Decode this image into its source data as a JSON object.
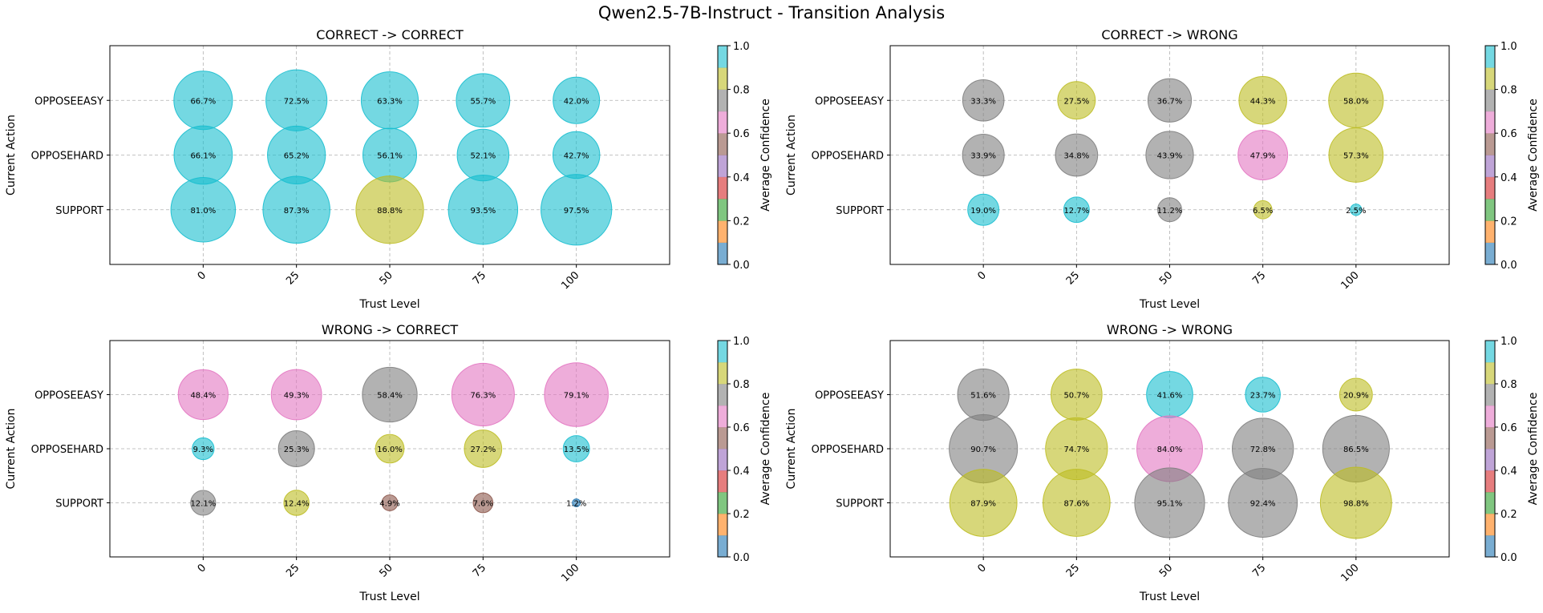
{
  "suptitle": "Qwen2.5-7B-Instruct - Transition Analysis",
  "colormap": [
    "#1f77b4",
    "#ff7f0e",
    "#2ca02c",
    "#d62728",
    "#9467bd",
    "#8c564b",
    "#e377c2",
    "#7f7f7f",
    "#bcbd22",
    "#17becf"
  ],
  "chart_data": [
    {
      "type": "scatter",
      "title": "CORRECT -> CORRECT",
      "xlabel": "Trust Level",
      "ylabel": "Current Action",
      "colorbar_label": "Average Confidence",
      "colorbar_ticks": [
        "0.0",
        "0.2",
        "0.4",
        "0.6",
        "0.8",
        "1.0"
      ],
      "x_ticks": [
        "0",
        "25",
        "50",
        "75",
        "100"
      ],
      "y_categories": [
        "OPPOSEEASY",
        "OPPOSEHARD",
        "SUPPORT"
      ],
      "points": [
        {
          "y": "OPPOSEEASY",
          "x": 0,
          "pct": 66.7,
          "label": "66.7%",
          "confidence": 0.95
        },
        {
          "y": "OPPOSEEASY",
          "x": 25,
          "pct": 72.5,
          "label": "72.5%",
          "confidence": 0.95
        },
        {
          "y": "OPPOSEEASY",
          "x": 50,
          "pct": 63.3,
          "label": "63.3%",
          "confidence": 0.95
        },
        {
          "y": "OPPOSEEASY",
          "x": 75,
          "pct": 55.7,
          "label": "55.7%",
          "confidence": 0.95
        },
        {
          "y": "OPPOSEEASY",
          "x": 100,
          "pct": 42.0,
          "label": "42.0%",
          "confidence": 0.95
        },
        {
          "y": "OPPOSEHARD",
          "x": 0,
          "pct": 66.1,
          "label": "66.1%",
          "confidence": 0.95
        },
        {
          "y": "OPPOSEHARD",
          "x": 25,
          "pct": 65.2,
          "label": "65.2%",
          "confidence": 0.95
        },
        {
          "y": "OPPOSEHARD",
          "x": 50,
          "pct": 56.1,
          "label": "56.1%",
          "confidence": 0.95
        },
        {
          "y": "OPPOSEHARD",
          "x": 75,
          "pct": 52.1,
          "label": "52.1%",
          "confidence": 0.95
        },
        {
          "y": "OPPOSEHARD",
          "x": 100,
          "pct": 42.7,
          "label": "42.7%",
          "confidence": 0.95
        },
        {
          "y": "SUPPORT",
          "x": 0,
          "pct": 81.0,
          "label": "81.0%",
          "confidence": 0.95
        },
        {
          "y": "SUPPORT",
          "x": 25,
          "pct": 87.3,
          "label": "87.3%",
          "confidence": 0.95
        },
        {
          "y": "SUPPORT",
          "x": 50,
          "pct": 88.8,
          "label": "88.8%",
          "confidence": 0.85
        },
        {
          "y": "SUPPORT",
          "x": 75,
          "pct": 93.5,
          "label": "93.5%",
          "confidence": 0.95
        },
        {
          "y": "SUPPORT",
          "x": 100,
          "pct": 97.5,
          "label": "97.5%",
          "confidence": 0.95
        }
      ]
    },
    {
      "type": "scatter",
      "title": "CORRECT -> WRONG",
      "xlabel": "Trust Level",
      "ylabel": "Current Action",
      "colorbar_label": "Average Confidence",
      "colorbar_ticks": [
        "0.0",
        "0.2",
        "0.4",
        "0.6",
        "0.8",
        "1.0"
      ],
      "x_ticks": [
        "0",
        "25",
        "50",
        "75",
        "100"
      ],
      "y_categories": [
        "OPPOSEEASY",
        "OPPOSEHARD",
        "SUPPORT"
      ],
      "points": [
        {
          "y": "OPPOSEEASY",
          "x": 0,
          "pct": 33.3,
          "label": "33.3%",
          "confidence": 0.75
        },
        {
          "y": "OPPOSEEASY",
          "x": 25,
          "pct": 27.5,
          "label": "27.5%",
          "confidence": 0.85
        },
        {
          "y": "OPPOSEEASY",
          "x": 50,
          "pct": 36.7,
          "label": "36.7%",
          "confidence": 0.75
        },
        {
          "y": "OPPOSEEASY",
          "x": 75,
          "pct": 44.3,
          "label": "44.3%",
          "confidence": 0.85
        },
        {
          "y": "OPPOSEEASY",
          "x": 100,
          "pct": 58.0,
          "label": "58.0%",
          "confidence": 0.85
        },
        {
          "y": "OPPOSEHARD",
          "x": 0,
          "pct": 33.9,
          "label": "33.9%",
          "confidence": 0.75
        },
        {
          "y": "OPPOSEHARD",
          "x": 25,
          "pct": 34.8,
          "label": "34.8%",
          "confidence": 0.75
        },
        {
          "y": "OPPOSEHARD",
          "x": 50,
          "pct": 43.9,
          "label": "43.9%",
          "confidence": 0.75
        },
        {
          "y": "OPPOSEHARD",
          "x": 75,
          "pct": 47.9,
          "label": "47.9%",
          "confidence": 0.65
        },
        {
          "y": "OPPOSEHARD",
          "x": 100,
          "pct": 57.3,
          "label": "57.3%",
          "confidence": 0.85
        },
        {
          "y": "SUPPORT",
          "x": 0,
          "pct": 19.0,
          "label": "19.0%",
          "confidence": 0.95
        },
        {
          "y": "SUPPORT",
          "x": 25,
          "pct": 12.7,
          "label": "12.7%",
          "confidence": 0.95
        },
        {
          "y": "SUPPORT",
          "x": 50,
          "pct": 11.2,
          "label": "11.2%",
          "confidence": 0.75
        },
        {
          "y": "SUPPORT",
          "x": 75,
          "pct": 6.5,
          "label": "6.5%",
          "confidence": 0.85
        },
        {
          "y": "SUPPORT",
          "x": 100,
          "pct": 2.5,
          "label": "2.5%",
          "confidence": 0.95
        }
      ]
    },
    {
      "type": "scatter",
      "title": "WRONG -> CORRECT",
      "xlabel": "Trust Level",
      "ylabel": "Current Action",
      "colorbar_label": "Average Confidence",
      "colorbar_ticks": [
        "0.0",
        "0.2",
        "0.4",
        "0.6",
        "0.8",
        "1.0"
      ],
      "x_ticks": [
        "0",
        "25",
        "50",
        "75",
        "100"
      ],
      "y_categories": [
        "OPPOSEEASY",
        "OPPOSEHARD",
        "SUPPORT"
      ],
      "points": [
        {
          "y": "OPPOSEEASY",
          "x": 0,
          "pct": 48.4,
          "label": "48.4%",
          "confidence": 0.65
        },
        {
          "y": "OPPOSEEASY",
          "x": 25,
          "pct": 49.3,
          "label": "49.3%",
          "confidence": 0.65
        },
        {
          "y": "OPPOSEEASY",
          "x": 50,
          "pct": 58.4,
          "label": "58.4%",
          "confidence": 0.75
        },
        {
          "y": "OPPOSEEASY",
          "x": 75,
          "pct": 76.3,
          "label": "76.3%",
          "confidence": 0.65
        },
        {
          "y": "OPPOSEEASY",
          "x": 100,
          "pct": 79.1,
          "label": "79.1%",
          "confidence": 0.65
        },
        {
          "y": "OPPOSEHARD",
          "x": 0,
          "pct": 9.3,
          "label": "9.3%",
          "confidence": 0.95
        },
        {
          "y": "OPPOSEHARD",
          "x": 25,
          "pct": 25.3,
          "label": "25.3%",
          "confidence": 0.75
        },
        {
          "y": "OPPOSEHARD",
          "x": 50,
          "pct": 16.0,
          "label": "16.0%",
          "confidence": 0.85
        },
        {
          "y": "OPPOSEHARD",
          "x": 75,
          "pct": 27.2,
          "label": "27.2%",
          "confidence": 0.85
        },
        {
          "y": "OPPOSEHARD",
          "x": 100,
          "pct": 13.5,
          "label": "13.5%",
          "confidence": 0.95
        },
        {
          "y": "SUPPORT",
          "x": 0,
          "pct": 12.1,
          "label": "12.1%",
          "confidence": 0.75
        },
        {
          "y": "SUPPORT",
          "x": 25,
          "pct": 12.4,
          "label": "12.4%",
          "confidence": 0.85
        },
        {
          "y": "SUPPORT",
          "x": 50,
          "pct": 4.9,
          "label": "4.9%",
          "confidence": 0.55
        },
        {
          "y": "SUPPORT",
          "x": 75,
          "pct": 7.6,
          "label": "7.6%",
          "confidence": 0.55
        },
        {
          "y": "SUPPORT",
          "x": 100,
          "pct": 1.2,
          "label": "1.2%",
          "confidence": 0.05
        }
      ]
    },
    {
      "type": "scatter",
      "title": "WRONG -> WRONG",
      "xlabel": "Trust Level",
      "ylabel": "Current Action",
      "colorbar_label": "Average Confidence",
      "colorbar_ticks": [
        "0.0",
        "0.2",
        "0.4",
        "0.6",
        "0.8",
        "1.0"
      ],
      "x_ticks": [
        "0",
        "25",
        "50",
        "75",
        "100"
      ],
      "y_categories": [
        "OPPOSEEASY",
        "OPPOSEHARD",
        "SUPPORT"
      ],
      "points": [
        {
          "y": "OPPOSEEASY",
          "x": 0,
          "pct": 51.6,
          "label": "51.6%",
          "confidence": 0.75
        },
        {
          "y": "OPPOSEEASY",
          "x": 25,
          "pct": 50.7,
          "label": "50.7%",
          "confidence": 0.85
        },
        {
          "y": "OPPOSEEASY",
          "x": 50,
          "pct": 41.6,
          "label": "41.6%",
          "confidence": 0.95
        },
        {
          "y": "OPPOSEEASY",
          "x": 75,
          "pct": 23.7,
          "label": "23.7%",
          "confidence": 0.95
        },
        {
          "y": "OPPOSEEASY",
          "x": 100,
          "pct": 20.9,
          "label": "20.9%",
          "confidence": 0.85
        },
        {
          "y": "OPPOSEHARD",
          "x": 0,
          "pct": 90.7,
          "label": "90.7%",
          "confidence": 0.75
        },
        {
          "y": "OPPOSEHARD",
          "x": 25,
          "pct": 74.7,
          "label": "74.7%",
          "confidence": 0.85
        },
        {
          "y": "OPPOSEHARD",
          "x": 50,
          "pct": 84.0,
          "label": "84.0%",
          "confidence": 0.65
        },
        {
          "y": "OPPOSEHARD",
          "x": 75,
          "pct": 72.8,
          "label": "72.8%",
          "confidence": 0.75
        },
        {
          "y": "OPPOSEHARD",
          "x": 100,
          "pct": 86.5,
          "label": "86.5%",
          "confidence": 0.75
        },
        {
          "y": "SUPPORT",
          "x": 0,
          "pct": 87.9,
          "label": "87.9%",
          "confidence": 0.85
        },
        {
          "y": "SUPPORT",
          "x": 25,
          "pct": 87.6,
          "label": "87.6%",
          "confidence": 0.85
        },
        {
          "y": "SUPPORT",
          "x": 50,
          "pct": 95.1,
          "label": "95.1%",
          "confidence": 0.75
        },
        {
          "y": "SUPPORT",
          "x": 75,
          "pct": 92.4,
          "label": "92.4%",
          "confidence": 0.75
        },
        {
          "y": "SUPPORT",
          "x": 100,
          "pct": 98.8,
          "label": "98.8%",
          "confidence": 0.85
        }
      ]
    }
  ]
}
